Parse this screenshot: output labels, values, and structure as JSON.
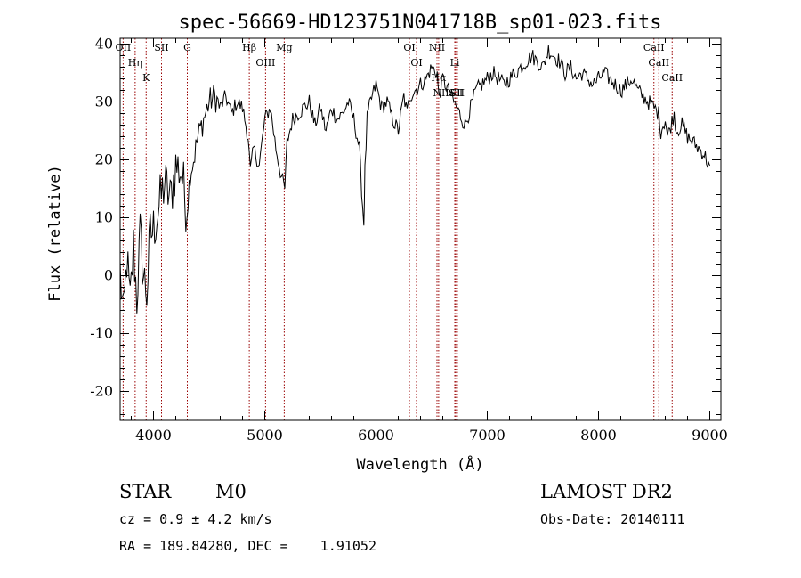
{
  "chart_data": {
    "type": "line",
    "title": "spec-56669-HD123751N041718B_sp01-023.fits",
    "xlabel": "Wavelength (Å)",
    "ylabel": "Flux (relative)",
    "xlim": [
      3700,
      9100
    ],
    "ylim": [
      -25,
      41
    ],
    "xticks": [
      4000,
      5000,
      6000,
      7000,
      8000,
      9000
    ],
    "yticks": [
      -20,
      -10,
      0,
      10,
      20,
      30,
      40
    ],
    "grid": false,
    "line_color": "#000000",
    "marker_color": "#990000",
    "series": [
      {
        "x": [
          3700,
          3730,
          3760,
          3790,
          3820,
          3850,
          3880,
          3910,
          3940,
          3970,
          4000,
          4050,
          4100,
          4150,
          4200,
          4250,
          4300,
          4330,
          4360,
          4400,
          4450,
          4500,
          4550,
          4600,
          4650,
          4700,
          4750,
          4800,
          4850,
          4870,
          4900,
          4950,
          5000,
          5050,
          5100,
          5150,
          5180,
          5200,
          5250,
          5300,
          5350,
          5400,
          5450,
          5500,
          5550,
          5600,
          5650,
          5700,
          5750,
          5800,
          5850,
          5870,
          5890,
          5900,
          5920,
          5950,
          6000,
          6050,
          6100,
          6150,
          6200,
          6250,
          6280,
          6300,
          6350,
          6400,
          6450,
          6500,
          6550,
          6563,
          6580,
          6600,
          6650,
          6700,
          6750,
          6800,
          6850,
          6900,
          6950,
          7000,
          7050,
          7100,
          7150,
          7200,
          7250,
          7300,
          7350,
          7400,
          7450,
          7500,
          7550,
          7600,
          7650,
          7700,
          7750,
          7800,
          7850,
          7900,
          7950,
          8000,
          8050,
          8100,
          8150,
          8200,
          8250,
          8300,
          8350,
          8400,
          8450,
          8500,
          8540,
          8560,
          8600,
          8620,
          8650,
          8680,
          8700,
          8750,
          8800,
          8850,
          8900,
          8950,
          8970,
          9000
        ],
        "y": [
          1,
          -8,
          3,
          -5,
          5,
          -4,
          7,
          0,
          -3,
          7,
          8,
          12,
          16,
          13,
          19,
          18,
          11,
          18,
          20,
          24,
          27,
          30,
          31,
          29,
          31,
          28,
          30,
          29,
          24,
          18,
          22,
          19,
          27,
          29,
          22,
          17,
          15,
          23,
          27,
          28,
          29,
          30,
          26,
          29,
          25,
          29,
          27,
          28,
          30,
          27,
          22,
          15,
          9,
          18,
          27,
          30,
          33,
          29,
          30,
          27,
          25,
          31,
          28,
          31,
          32,
          33,
          34,
          36,
          35,
          31,
          32,
          34,
          32,
          30,
          28,
          26,
          29,
          32,
          33,
          34,
          35,
          34,
          33,
          34,
          35,
          36,
          37,
          38,
          37,
          36,
          39,
          38,
          37,
          35,
          36,
          34,
          35,
          34,
          33,
          34,
          35,
          34,
          33,
          32,
          33,
          34,
          32,
          31,
          30,
          29,
          28,
          25,
          27,
          24,
          26,
          28,
          25,
          26,
          24,
          23,
          22,
          21,
          20,
          19
        ]
      }
    ],
    "lines": [
      {
        "name": "OII",
        "x": 3727
      },
      {
        "name": "Hη",
        "x": 3835
      },
      {
        "name": "K",
        "x": 3934
      },
      {
        "name": "SII",
        "x": 4072
      },
      {
        "name": "G",
        "x": 4304
      },
      {
        "name": "Hβ",
        "x": 4861
      },
      {
        "name": "OIII",
        "x": 5007
      },
      {
        "name": "Mg",
        "x": 5175
      },
      {
        "name": "OI",
        "x": 6300
      },
      {
        "name": "OI",
        "x": 6364
      },
      {
        "name": "NII",
        "x": 6548
      },
      {
        "name": "Hα",
        "x": 6563
      },
      {
        "name": "NII",
        "x": 6584
      },
      {
        "name": "Li",
        "x": 6708
      },
      {
        "name": "SII",
        "x": 6717
      },
      {
        "name": "SII",
        "x": 6731
      },
      {
        "name": "CaII",
        "x": 8498
      },
      {
        "name": "CaII",
        "x": 8542
      },
      {
        "name": "CaII",
        "x": 8662
      }
    ]
  },
  "info": {
    "class": "STAR",
    "subclass": "M0",
    "survey": "LAMOST DR2",
    "cz": "cz = 0.9 ± 4.2 km/s",
    "obs_date": "Obs-Date: 20140111",
    "radec": "RA = 189.84280, DEC =    1.91052"
  }
}
